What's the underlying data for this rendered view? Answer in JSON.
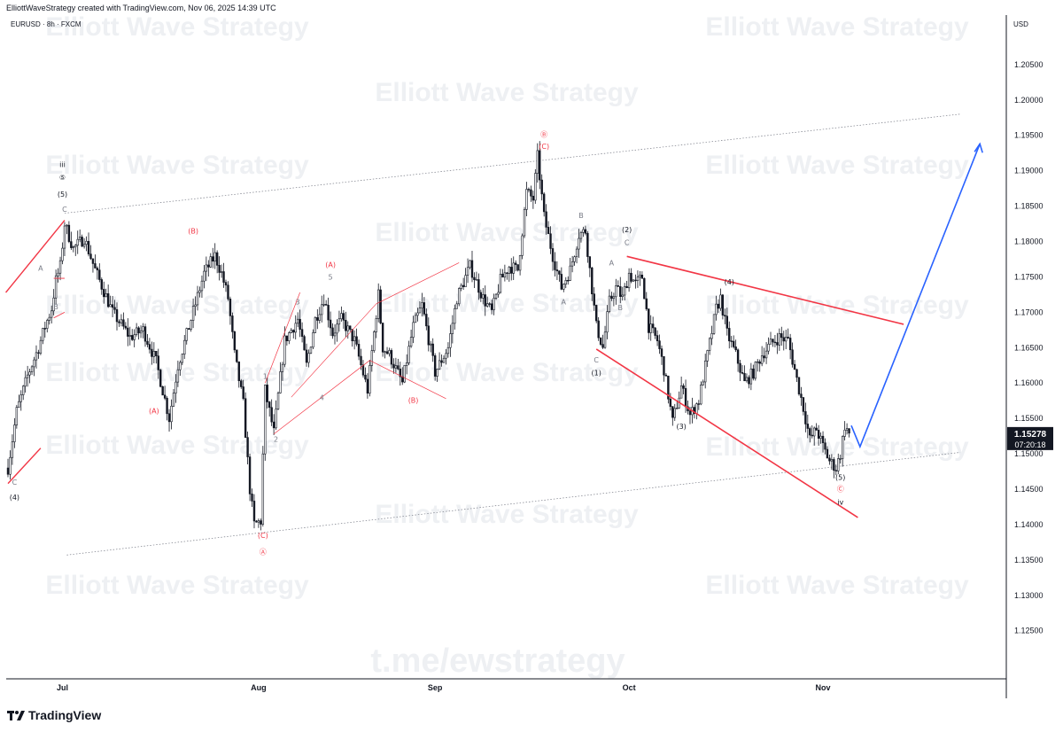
{
  "header": {
    "credit": "ElliottWaveStrategy created with TradingView.com, Nov 06, 2025 14:39 UTC"
  },
  "footer": {
    "brand": "TradingView"
  },
  "colors": {
    "bull": "#131722",
    "bear": "#131722",
    "annotation_red": "#f23645",
    "projection_blue": "#2962ff",
    "grid": "#f0f3fa",
    "price_tag": "#131722"
  },
  "chart_data": {
    "type": "candlestick",
    "symbol_line": "EURUSD · 8h · FXCM",
    "currency": "USD",
    "ylim": [
      1.1182,
      1.212
    ],
    "y_ticks": [
      "1.20500",
      "1.20000",
      "1.19500",
      "1.19000",
      "1.18500",
      "1.18000",
      "1.17500",
      "1.17000",
      "1.16500",
      "1.16000",
      "1.15500",
      "1.15000",
      "1.14500",
      "1.14000",
      "1.13500",
      "1.13000",
      "1.12500"
    ],
    "x_ticks": [
      {
        "label": "Jul",
        "bar": 25
      },
      {
        "label": "Aug",
        "bar": 115
      },
      {
        "label": "Sep",
        "bar": 196
      },
      {
        "label": "Oct",
        "bar": 285
      },
      {
        "label": "Nov",
        "bar": 374
      }
    ],
    "bar_count": 420,
    "last_price": {
      "price": "1.15278",
      "countdown": "07:20:18",
      "value": 1.15278
    },
    "watermarks": [
      "Elliott Wave Strategy",
      "t.me/ewstrategy"
    ],
    "pivots": [
      {
        "bar": 0,
        "p": 1.148
      },
      {
        "bar": 4,
        "p": 1.156
      },
      {
        "bar": 9,
        "p": 1.161
      },
      {
        "bar": 14,
        "p": 1.165
      },
      {
        "bar": 17,
        "p": 1.168
      },
      {
        "bar": 20,
        "p": 1.1705
      },
      {
        "bar": 22,
        "p": 1.1745
      },
      {
        "bar": 24,
        "p": 1.1765
      },
      {
        "bar": 26,
        "p": 1.1825
      },
      {
        "bar": 30,
        "p": 1.179
      },
      {
        "bar": 35,
        "p": 1.1805
      },
      {
        "bar": 40,
        "p": 1.176
      },
      {
        "bar": 48,
        "p": 1.17
      },
      {
        "bar": 56,
        "p": 1.1665
      },
      {
        "bar": 62,
        "p": 1.1675
      },
      {
        "bar": 68,
        "p": 1.163
      },
      {
        "bar": 71,
        "p": 1.159
      },
      {
        "bar": 74,
        "p": 1.155
      },
      {
        "bar": 78,
        "p": 1.1625
      },
      {
        "bar": 84,
        "p": 1.169
      },
      {
        "bar": 90,
        "p": 1.1755
      },
      {
        "bar": 95,
        "p": 1.178
      },
      {
        "bar": 98,
        "p": 1.1755
      },
      {
        "bar": 101,
        "p": 1.172
      },
      {
        "bar": 104,
        "p": 1.164
      },
      {
        "bar": 108,
        "p": 1.157
      },
      {
        "bar": 111,
        "p": 1.145
      },
      {
        "bar": 113,
        "p": 1.14
      },
      {
        "bar": 116,
        "p": 1.1405
      },
      {
        "bar": 118,
        "p": 1.159
      },
      {
        "bar": 122,
        "p": 1.153
      },
      {
        "bar": 127,
        "p": 1.166
      },
      {
        "bar": 133,
        "p": 1.169
      },
      {
        "bar": 137,
        "p": 1.1625
      },
      {
        "bar": 141,
        "p": 1.169
      },
      {
        "bar": 145,
        "p": 1.172
      },
      {
        "bar": 149,
        "p": 1.167
      },
      {
        "bar": 153,
        "p": 1.169
      },
      {
        "bar": 159,
        "p": 1.166
      },
      {
        "bar": 165,
        "p": 1.159
      },
      {
        "bar": 170,
        "p": 1.1725
      },
      {
        "bar": 172,
        "p": 1.165
      },
      {
        "bar": 175,
        "p": 1.164
      },
      {
        "bar": 181,
        "p": 1.16
      },
      {
        "bar": 186,
        "p": 1.168
      },
      {
        "bar": 190,
        "p": 1.171
      },
      {
        "bar": 196,
        "p": 1.1615
      },
      {
        "bar": 202,
        "p": 1.165
      },
      {
        "bar": 206,
        "p": 1.172
      },
      {
        "bar": 212,
        "p": 1.1765
      },
      {
        "bar": 218,
        "p": 1.172
      },
      {
        "bar": 222,
        "p": 1.17
      },
      {
        "bar": 226,
        "p": 1.1745
      },
      {
        "bar": 230,
        "p": 1.1765
      },
      {
        "bar": 234,
        "p": 1.176
      },
      {
        "bar": 238,
        "p": 1.187
      },
      {
        "bar": 241,
        "p": 1.186
      },
      {
        "bar": 243,
        "p": 1.192
      },
      {
        "bar": 246,
        "p": 1.1835
      },
      {
        "bar": 250,
        "p": 1.178
      },
      {
        "bar": 254,
        "p": 1.1735
      },
      {
        "bar": 258,
        "p": 1.176
      },
      {
        "bar": 262,
        "p": 1.181
      },
      {
        "bar": 265,
        "p": 1.1815
      },
      {
        "bar": 267,
        "p": 1.176
      },
      {
        "bar": 270,
        "p": 1.168
      },
      {
        "bar": 273,
        "p": 1.165
      },
      {
        "bar": 276,
        "p": 1.1715
      },
      {
        "bar": 279,
        "p": 1.1735
      },
      {
        "bar": 282,
        "p": 1.172
      },
      {
        "bar": 285,
        "p": 1.1755
      },
      {
        "bar": 288,
        "p": 1.174
      },
      {
        "bar": 291,
        "p": 1.175
      },
      {
        "bar": 294,
        "p": 1.168
      },
      {
        "bar": 298,
        "p": 1.166
      },
      {
        "bar": 301,
        "p": 1.162
      },
      {
        "bar": 305,
        "p": 1.1545
      },
      {
        "bar": 309,
        "p": 1.1595
      },
      {
        "bar": 313,
        "p": 1.1555
      },
      {
        "bar": 317,
        "p": 1.1575
      },
      {
        "bar": 321,
        "p": 1.164
      },
      {
        "bar": 325,
        "p": 1.1705
      },
      {
        "bar": 327,
        "p": 1.172
      },
      {
        "bar": 330,
        "p": 1.167
      },
      {
        "bar": 334,
        "p": 1.164
      },
      {
        "bar": 338,
        "p": 1.16
      },
      {
        "bar": 342,
        "p": 1.1615
      },
      {
        "bar": 346,
        "p": 1.164
      },
      {
        "bar": 350,
        "p": 1.1655
      },
      {
        "bar": 354,
        "p": 1.1665
      },
      {
        "bar": 358,
        "p": 1.166
      },
      {
        "bar": 362,
        "p": 1.1605
      },
      {
        "bar": 365,
        "p": 1.1565
      },
      {
        "bar": 368,
        "p": 1.152
      },
      {
        "bar": 371,
        "p": 1.1535
      },
      {
        "bar": 374,
        "p": 1.151
      },
      {
        "bar": 377,
        "p": 1.149
      },
      {
        "bar": 380,
        "p": 1.148
      },
      {
        "bar": 382,
        "p": 1.15
      },
      {
        "bar": 384,
        "p": 1.154
      },
      {
        "bar": 386,
        "p": 1.1528
      }
    ],
    "wave_labels": [
      {
        "text": "iii",
        "bar": 25,
        "p": 1.1905,
        "color": "#131722"
      },
      {
        "text": "⑤",
        "bar": 25,
        "p": 1.1887,
        "color": "#131722"
      },
      {
        "text": "(5)",
        "bar": 25,
        "p": 1.1863,
        "color": "#131722"
      },
      {
        "text": "C",
        "bar": 26,
        "p": 1.1842,
        "color": "#787b86"
      },
      {
        "text": "A",
        "bar": 15,
        "p": 1.1759,
        "color": "#787b86"
      },
      {
        "text": "B",
        "bar": 22,
        "p": 1.1704,
        "color": "#787b86"
      },
      {
        "text": "C",
        "bar": 3,
        "p": 1.1456,
        "color": "#787b86"
      },
      {
        "text": "(4)",
        "bar": 3,
        "p": 1.1435,
        "color": "#131722"
      },
      {
        "text": "(B)",
        "bar": 85,
        "p": 1.1811,
        "color": "#f23645"
      },
      {
        "text": "(A)",
        "bar": 67,
        "p": 1.1557,
        "color": "#f23645"
      },
      {
        "text": "(C)",
        "bar": 117,
        "p": 1.1381,
        "color": "#f23645"
      },
      {
        "text": "Ⓐ",
        "bar": 117,
        "p": 1.1358,
        "color": "#f23645"
      },
      {
        "text": "1",
        "bar": 118,
        "p": 1.1606,
        "color": "#787b86"
      },
      {
        "text": "2",
        "bar": 123,
        "p": 1.1517,
        "color": "#787b86"
      },
      {
        "text": "3",
        "bar": 133,
        "p": 1.1711,
        "color": "#787b86"
      },
      {
        "text": "4",
        "bar": 144,
        "p": 1.1576,
        "color": "#787b86"
      },
      {
        "text": "5",
        "bar": 148,
        "p": 1.1746,
        "color": "#787b86"
      },
      {
        "text": "(A)",
        "bar": 148,
        "p": 1.1764,
        "color": "#f23645"
      },
      {
        "text": "(B)",
        "bar": 186,
        "p": 1.1572,
        "color": "#f23645"
      },
      {
        "text": "Ⓑ",
        "bar": 246,
        "p": 1.1948,
        "color": "#f23645"
      },
      {
        "text": "(C)",
        "bar": 246,
        "p": 1.1931,
        "color": "#f23645"
      },
      {
        "text": "B",
        "bar": 263,
        "p": 1.1833,
        "color": "#787b86"
      },
      {
        "text": "A",
        "bar": 255,
        "p": 1.1711,
        "color": "#787b86"
      },
      {
        "text": "A",
        "bar": 277,
        "p": 1.1766,
        "color": "#787b86"
      },
      {
        "text": "B",
        "bar": 281,
        "p": 1.1703,
        "color": "#787b86"
      },
      {
        "text": "C",
        "bar": 284,
        "p": 1.1795,
        "color": "#787b86"
      },
      {
        "text": "(2)",
        "bar": 284,
        "p": 1.1813,
        "color": "#131722"
      },
      {
        "text": "C",
        "bar": 270,
        "p": 1.1629,
        "color": "#787b86"
      },
      {
        "text": "(1)",
        "bar": 270,
        "p": 1.1611,
        "color": "#131722"
      },
      {
        "text": "(3)",
        "bar": 309,
        "p": 1.1535,
        "color": "#131722"
      },
      {
        "text": "(4)",
        "bar": 331,
        "p": 1.1739,
        "color": "#131722"
      },
      {
        "text": "(5)",
        "bar": 382,
        "p": 1.1463,
        "color": "#131722"
      },
      {
        "text": "Ⓒ",
        "bar": 382,
        "p": 1.1447,
        "color": "#f23645"
      },
      {
        "text": "iv",
        "bar": 382,
        "p": 1.1428,
        "color": "#131722"
      }
    ]
  }
}
